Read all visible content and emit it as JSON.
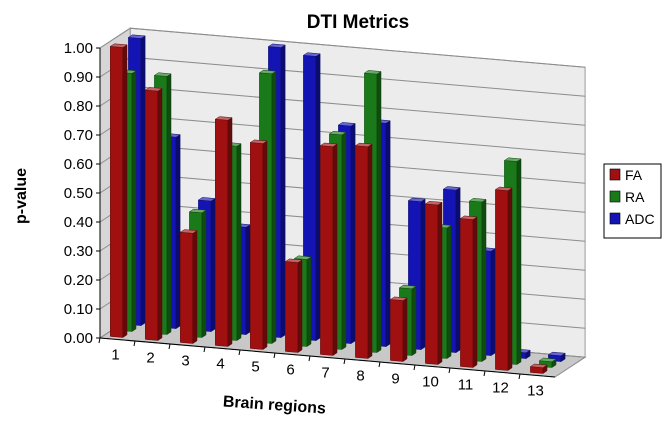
{
  "chart_data": {
    "type": "bar",
    "title": "DTI Metrics",
    "xlabel": "Brain regions",
    "ylabel": "p-value",
    "ylim": [
      0,
      1
    ],
    "yticks": [
      "0.00",
      "0.10",
      "0.20",
      "0.30",
      "0.40",
      "0.50",
      "0.60",
      "0.70",
      "0.80",
      "0.90",
      "1.00"
    ],
    "categories": [
      "1",
      "2",
      "3",
      "4",
      "5",
      "6",
      "7",
      "8",
      "9",
      "10",
      "11",
      "12",
      "13"
    ],
    "series": [
      {
        "name": "FA",
        "color": "#a01010",
        "values": [
          1.0,
          0.86,
          0.38,
          0.78,
          0.71,
          0.31,
          0.72,
          0.73,
          0.21,
          0.55,
          0.51,
          0.62,
          0.02
        ]
      },
      {
        "name": "RA",
        "color": "#1a7a1a",
        "values": [
          0.89,
          0.89,
          0.43,
          0.67,
          0.93,
          0.3,
          0.74,
          0.96,
          0.23,
          0.45,
          0.55,
          0.7,
          0.02
        ]
      },
      {
        "name": "ADC",
        "color": "#1414b4",
        "values": [
          0.99,
          0.66,
          0.45,
          0.37,
          1.0,
          0.98,
          0.75,
          0.77,
          0.51,
          0.56,
          0.36,
          0.02,
          0.02
        ]
      }
    ],
    "legend_position": "right",
    "grid": true,
    "projection": "3d"
  }
}
